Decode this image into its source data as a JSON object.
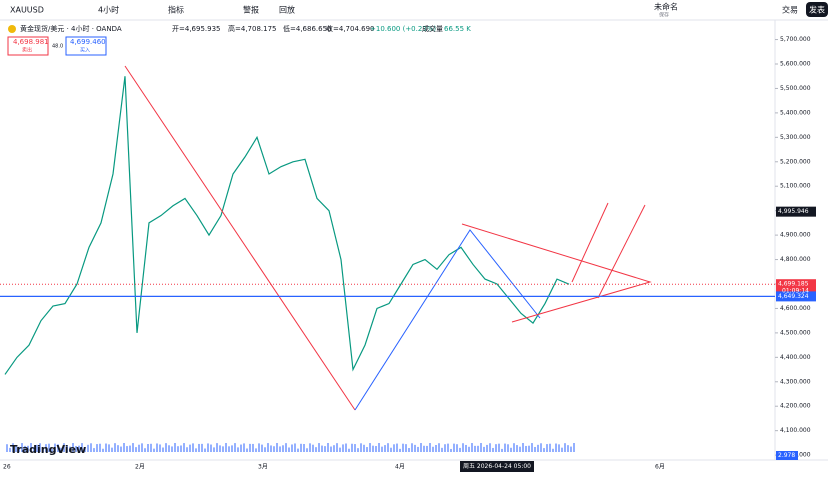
{
  "toolbar": {
    "symbol": "XAUUSD",
    "interval": "4小时",
    "indicators": "指标",
    "alerts": "警报",
    "replay": "回放",
    "layout_name": "未命名",
    "layout_status": "保存",
    "trade": "交易",
    "publish": "发表"
  },
  "legend": {
    "title": "黄金现货/美元 · 4小时 · OANDA",
    "open": "开=4,695.935",
    "high": "高=4,708.175",
    "low": "低=4,686.650",
    "close": "收=4,704.690",
    "change": "+10.600 (+0.23%)",
    "volume_label": "成交量",
    "volume": "66.55 K"
  },
  "order": {
    "sell_price": "4,698.981",
    "sell": "卖出",
    "spread": "48.0",
    "buy_price": "4,699.460",
    "buy": "买入"
  },
  "chart": {
    "ylim": [
      3980,
      5780
    ],
    "yticks": [
      {
        "value": 4000,
        "label": "4,000.000"
      },
      {
        "value": 4100,
        "label": "4,100.000"
      },
      {
        "value": 4200,
        "label": "4,200.000"
      },
      {
        "value": 4300,
        "label": "4,300.000"
      },
      {
        "value": 4400,
        "label": "4,400.000"
      },
      {
        "value": 4500,
        "label": "4,500.000"
      },
      {
        "value": 4600,
        "label": "4,600.000"
      },
      {
        "value": 4700,
        "label": "4,700.000"
      },
      {
        "value": 4800,
        "label": "4,800.000"
      },
      {
        "value": 4900,
        "label": "4,900.000"
      },
      {
        "value": 5000,
        "label": "5,000.000"
      },
      {
        "value": 5100,
        "label": "5,100.000"
      },
      {
        "value": 5200,
        "label": "5,200.000"
      },
      {
        "value": 5300,
        "label": "5,300.000"
      },
      {
        "value": 5400,
        "label": "5,400.000"
      },
      {
        "value": 5500,
        "label": "5,500.000"
      },
      {
        "value": 5600,
        "label": "5,600.000"
      },
      {
        "value": 5700,
        "label": "5,700.000"
      }
    ],
    "price": [
      4330,
      4400,
      4450,
      4550,
      4610,
      4620,
      4700,
      4850,
      4950,
      5150,
      5550,
      4500,
      4950,
      4980,
      5020,
      5050,
      4980,
      4900,
      4980,
      5150,
      5220,
      5300,
      5150,
      5180,
      5200,
      5210,
      5050,
      5000,
      4800,
      4350,
      4450,
      4600,
      4620,
      4700,
      4780,
      4800,
      4760,
      4820,
      4850,
      4780,
      4720,
      4700,
      4640,
      4580,
      4540,
      4620,
      4720,
      4699.185
    ],
    "tags": [
      {
        "value": 4995.946,
        "label": "4,995.946"
      },
      {
        "value": 4699.185,
        "label": "4,699.185"
      },
      {
        "value": 4649.324,
        "label": "4,649.324"
      }
    ],
    "countdown": "01:09:14",
    "x_labels": [
      "26",
      "2月",
      "3月",
      "4月",
      "6月"
    ],
    "cursor_date": "周五 2026-04-24  05:00",
    "volume_tag": "2.978",
    "logo": "TradingView"
  }
}
